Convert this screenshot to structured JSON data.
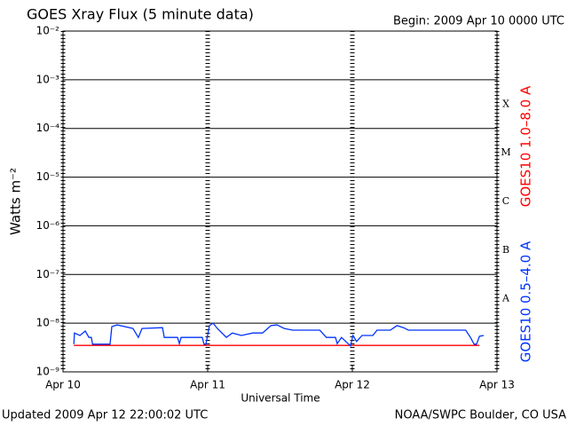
{
  "chart_data": {
    "type": "line",
    "title": "GOES Xray Flux (5 minute data)",
    "subtitle": "Begin:  2009 Apr 10 0000 UTC",
    "ylabel": "Watts m⁻²",
    "xlabel": "Universal Time",
    "footer_left": "Updated 2009 Apr 12 22:00:02 UTC",
    "footer_right": "NOAA/SWPC Boulder, CO USA",
    "flare_classes": [
      "X",
      "M",
      "C",
      "B",
      "A"
    ],
    "log_scale_y": true,
    "grid": true,
    "xlim": [
      0,
      72
    ],
    "xticks": [
      {
        "value": 0,
        "label": "Apr 10"
      },
      {
        "value": 24,
        "label": "Apr 11"
      },
      {
        "value": 48,
        "label": "Apr 12"
      },
      {
        "value": 72,
        "label": "Apr 13"
      }
    ],
    "ylim": [
      1e-09,
      0.01
    ],
    "yticks": [
      {
        "value": 1e-09,
        "label": "10⁻⁹"
      },
      {
        "value": 1e-08,
        "label": "10⁻⁸"
      },
      {
        "value": 1e-07,
        "label": "10⁻⁷"
      },
      {
        "value": 1e-06,
        "label": "10⁻⁶"
      },
      {
        "value": 1e-05,
        "label": "10⁻⁵"
      },
      {
        "value": 0.0001,
        "label": "10⁻⁴"
      },
      {
        "value": 0.001,
        "label": "10⁻³"
      },
      {
        "value": 0.01,
        "label": "10⁻²"
      }
    ],
    "series": [
      {
        "name": "GOES10 1.0–8.0 A",
        "color": "#ff0000",
        "x": [
          1.8,
          69.1
        ],
        "values": [
          3.5e-09,
          3.5e-09
        ]
      },
      {
        "name": "GOES10 0.5–4.0 A",
        "color": "#0033ff",
        "x": [
          1.8,
          1.9,
          2.8,
          3.7,
          4.3,
          4.7,
          4.9,
          7.8,
          8.1,
          9.0,
          11.6,
          12.5,
          13.1,
          16.5,
          16.8,
          19.0,
          19.3,
          19.6,
          23.1,
          23.4,
          23.7,
          24.3,
          24.9,
          25.6,
          27.1,
          28.1,
          29.6,
          31.5,
          33.1,
          34.5,
          35.5,
          36.7,
          38.1,
          42.6,
          43.7,
          45.2,
          45.5,
          46.2,
          47.3,
          47.7,
          48.1,
          48.7,
          49.6,
          51.4,
          52.1,
          54.3,
          55.4,
          56.5,
          57.3,
          66.8,
          67.6,
          68.2,
          68.6,
          69.1,
          69.8
        ],
        "values": [
          3.7e-09,
          6.3e-09,
          5.6e-09,
          6.9e-09,
          5.1e-09,
          5.1e-09,
          3.7e-09,
          3.7e-09,
          8.5e-09,
          9.2e-09,
          7.8e-09,
          5.1e-09,
          7.8e-09,
          8.1e-09,
          5.1e-09,
          5.1e-09,
          3.8e-09,
          5.1e-09,
          5.1e-09,
          3.7e-09,
          3.7e-09,
          8.9e-09,
          1e-08,
          7.8e-09,
          5.1e-09,
          6.3e-09,
          5.6e-09,
          6.3e-09,
          6.3e-09,
          8.9e-09,
          9.2e-09,
          7.8e-09,
          7.2e-09,
          7.2e-09,
          5.1e-09,
          5.1e-09,
          3.8e-09,
          5.1e-09,
          3.8e-09,
          3.4e-09,
          5.6e-09,
          4.2e-09,
          5.6e-09,
          5.6e-09,
          7.2e-09,
          7.2e-09,
          8.9e-09,
          8.1e-09,
          7.2e-09,
          7.2e-09,
          5.1e-09,
          3.7e-09,
          3.7e-09,
          5.4e-09,
          5.6e-09
        ]
      }
    ]
  }
}
